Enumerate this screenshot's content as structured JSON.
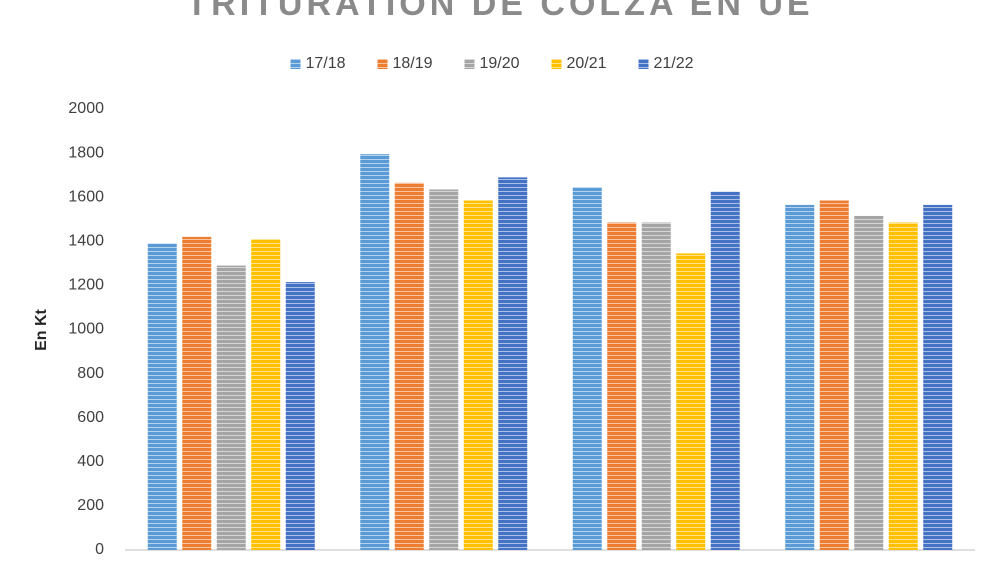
{
  "chart_data": {
    "type": "bar",
    "title": "TRITURATION DE COLZA EN UE",
    "y_label": "En Kt",
    "categories": [
      null,
      null,
      null,
      null
    ],
    "series": [
      {
        "name": "17/18",
        "color": "#5b9bd5",
        "values": [
          1390,
          1795,
          1645,
          1565
        ]
      },
      {
        "name": "18/19",
        "color": "#ed7d31",
        "values": [
          1420,
          1665,
          1485,
          1585
        ]
      },
      {
        "name": "19/20",
        "color": "#a5a5a5",
        "values": [
          1290,
          1635,
          1485,
          1515
        ]
      },
      {
        "name": "20/21",
        "color": "#ffc000",
        "values": [
          1410,
          1585,
          1345,
          1485
        ]
      },
      {
        "name": "21/22",
        "color": "#4472c4",
        "values": [
          1215,
          1690,
          1625,
          1565
        ]
      }
    ],
    "ylim": [
      0,
      2000
    ],
    "yticks": [
      0,
      200,
      400,
      600,
      800,
      1000,
      1200,
      1400,
      1600,
      1800,
      2000
    ],
    "grid": false,
    "legend": "top"
  }
}
